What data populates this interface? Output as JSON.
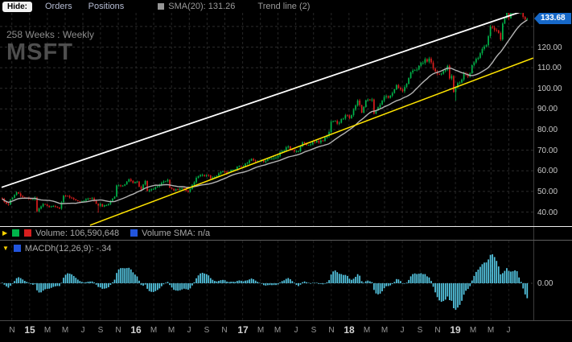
{
  "topbar": {
    "hide_label": "Hide:",
    "orders_label": "Orders",
    "positions_label": "Positions",
    "sma_legend_label": "SMA(20): 131.26",
    "sma_swatch_color": "#969696",
    "trendline_legend_label": "Trend line (2)"
  },
  "chart_header": {
    "range_label": "258 Weeks : Weekly",
    "symbol": "MSFT"
  },
  "price_axis": {
    "last_price": "133.68",
    "last_price_value": 133.68,
    "badge_color": "#1668c8",
    "labels": [
      {
        "text": "120.00",
        "value": 120
      },
      {
        "text": "110.00",
        "value": 110
      },
      {
        "text": "100.00",
        "value": 100
      },
      {
        "text": "90.00",
        "value": 90
      },
      {
        "text": "80.00",
        "value": 80
      },
      {
        "text": "70.00",
        "value": 70
      },
      {
        "text": "60.00",
        "value": 60
      },
      {
        "text": "50.00",
        "value": 50
      },
      {
        "text": "40.00",
        "value": 40
      }
    ]
  },
  "volume_panel": {
    "collapse_icon": "▶",
    "up_color": "#00b44a",
    "down_color": "#d81e1e",
    "volume_label": "Volume: 106,590,648",
    "sma_swatch_color": "#2255dd",
    "sma_label": "Volume SMA: n/a"
  },
  "macd_panel": {
    "collapse_icon": "▼",
    "swatch_color": "#2255dd",
    "label": "MACDh(12,26,9): -.34",
    "zero_label": "0.00"
  },
  "time_axis": {
    "labels": [
      {
        "text": "N",
        "week": 5.0
      },
      {
        "text": "15",
        "week": 13.7
      },
      {
        "text": "M",
        "week": 22.4
      },
      {
        "text": "M",
        "week": 31.1
      },
      {
        "text": "J",
        "week": 39.8
      },
      {
        "text": "S",
        "week": 48.4
      },
      {
        "text": "N",
        "week": 57.1
      },
      {
        "text": "16",
        "week": 65.8
      },
      {
        "text": "M",
        "week": 74.5
      },
      {
        "text": "M",
        "week": 83.2
      },
      {
        "text": "J",
        "week": 91.9
      },
      {
        "text": "S",
        "week": 100.6
      },
      {
        "text": "N",
        "week": 109.3
      },
      {
        "text": "17",
        "week": 118.0
      },
      {
        "text": "M",
        "week": 126.7
      },
      {
        "text": "M",
        "week": 135.3
      },
      {
        "text": "J",
        "week": 144.0
      },
      {
        "text": "S",
        "week": 152.7
      },
      {
        "text": "N",
        "week": 161.4
      },
      {
        "text": "18",
        "week": 170.1
      },
      {
        "text": "M",
        "week": 178.8
      },
      {
        "text": "M",
        "week": 187.5
      },
      {
        "text": "J",
        "week": 196.2
      },
      {
        "text": "S",
        "week": 204.9
      },
      {
        "text": "N",
        "week": 213.5
      },
      {
        "text": "19",
        "week": 222.2
      },
      {
        "text": "M",
        "week": 230.9
      },
      {
        "text": "M",
        "week": 239.6
      },
      {
        "text": "J",
        "week": 248.3
      }
    ]
  },
  "chart_data": {
    "type": "candlestick",
    "symbol": "MSFT",
    "timeframe": "Weekly",
    "weeks_shown": 258,
    "title": "258 Weeks : Weekly",
    "last_close": 133.68,
    "visible_price_range": [
      32.8,
      136.6
    ],
    "up_color": "#00b44a",
    "down_color": "#d81e1e",
    "grid": {
      "h_lines": [
        40,
        50,
        60,
        70,
        80,
        90,
        100,
        110,
        120,
        130
      ]
    },
    "sma": {
      "period": 20,
      "last": 131.26,
      "color": "#b4b4b4"
    },
    "trendlines": [
      {
        "name": "upper-channel",
        "color": "#ffffff",
        "from_week": 0,
        "from_price": 52.0,
        "to_week": 260.0,
        "to_price": 139.0
      },
      {
        "name": "lower-channel",
        "color": "#ffe400",
        "from_week": 43.3,
        "from_price": 33.6,
        "to_week": 260.3,
        "to_price": 114.7
      }
    ],
    "anchors": [
      [
        0,
        46.4
      ],
      [
        2,
        44.0
      ],
      [
        3,
        43.6
      ],
      [
        4,
        46.1
      ],
      [
        5,
        46.9
      ],
      [
        7,
        49.6
      ],
      [
        9,
        47.8
      ],
      [
        11,
        46.9
      ],
      [
        13,
        46.4
      ],
      [
        15,
        46.2
      ],
      [
        16,
        47.0
      ],
      [
        17,
        40.4
      ],
      [
        20,
        43.9
      ],
      [
        23,
        42.4
      ],
      [
        25,
        42.9
      ],
      [
        28,
        41.7
      ],
      [
        30,
        47.9
      ],
      [
        32,
        47.8
      ],
      [
        36,
        45.7
      ],
      [
        39,
        45.3
      ],
      [
        42,
        46.6
      ],
      [
        44,
        46.7
      ],
      [
        47,
        43.1
      ],
      [
        48,
        43.9
      ],
      [
        49,
        42.6
      ],
      [
        52,
        43.9
      ],
      [
        55,
        47.5
      ],
      [
        56,
        52.9
      ],
      [
        59,
        52.8
      ],
      [
        62,
        55.9
      ],
      [
        64,
        54.1
      ],
      [
        66,
        54.8
      ],
      [
        67,
        52.3
      ],
      [
        68,
        51.0
      ],
      [
        70,
        55.1
      ],
      [
        71,
        50.2
      ],
      [
        72,
        50.5
      ],
      [
        75,
        52.0
      ],
      [
        78,
        54.2
      ],
      [
        81,
        55.6
      ],
      [
        82,
        51.8
      ],
      [
        84,
        50.4
      ],
      [
        85,
        51.1
      ],
      [
        89,
        51.5
      ],
      [
        91,
        49.8
      ],
      [
        92,
        51.2
      ],
      [
        95,
        56.6
      ],
      [
        97,
        57.9
      ],
      [
        101,
        57.7
      ],
      [
        102,
        56.2
      ],
      [
        105,
        57.6
      ],
      [
        108,
        59.7
      ],
      [
        110,
        58.7
      ],
      [
        113,
        60.5
      ],
      [
        116,
        62.3
      ],
      [
        118,
        62.1
      ],
      [
        122,
        65.8
      ],
      [
        125,
        64.6
      ],
      [
        129,
        64.9
      ],
      [
        131,
        65.9
      ],
      [
        134,
        66.4
      ],
      [
        136,
        69.0
      ],
      [
        140,
        71.8
      ],
      [
        142,
        70.0
      ],
      [
        145,
        69.5
      ],
      [
        147,
        73.8
      ],
      [
        150,
        72.5
      ],
      [
        153,
        73.9
      ],
      [
        157,
        74.5
      ],
      [
        160,
        78.8
      ],
      [
        161,
        83.8
      ],
      [
        165,
        83.3
      ],
      [
        168,
        86.9
      ],
      [
        170,
        85.5
      ],
      [
        172,
        89.6
      ],
      [
        174,
        94.1
      ],
      [
        176,
        88.2
      ],
      [
        178,
        94.1
      ],
      [
        181,
        94.6
      ],
      [
        182,
        87.7
      ],
      [
        184,
        90.8
      ],
      [
        187,
        95.8
      ],
      [
        190,
        96.4
      ],
      [
        193,
        101.6
      ],
      [
        196,
        98.6
      ],
      [
        200,
        107.7
      ],
      [
        202,
        108.9
      ],
      [
        205,
        112.3
      ],
      [
        209,
        114.4
      ],
      [
        211,
        109.6
      ],
      [
        213,
        107.0
      ],
      [
        216,
        108.3
      ],
      [
        218,
        110.9
      ],
      [
        219,
        104.8
      ],
      [
        220,
        106.0
      ],
      [
        221,
        98.2
      ],
      [
        222,
        100.4
      ],
      [
        224,
        102.8
      ],
      [
        226,
        107.2
      ],
      [
        228,
        105.7
      ],
      [
        231,
        112.5
      ],
      [
        234,
        117.0
      ],
      [
        237,
        120.9
      ],
      [
        239,
        129.9
      ],
      [
        242,
        128.1
      ],
      [
        244,
        123.7
      ],
      [
        245,
        131.4
      ],
      [
        247,
        137.0
      ],
      [
        248,
        134.0
      ],
      [
        250,
        138.9
      ],
      [
        252,
        141.3
      ],
      [
        253,
        136.9
      ],
      [
        254,
        137.7
      ],
      [
        256,
        133.4
      ],
      [
        257,
        133.68
      ]
    ],
    "low_overrides": {
      "17": 39.8,
      "47": 39.7,
      "222": 93.96
    },
    "high_overrides": {
      "252": 141.8
    },
    "macdh": {
      "fast": 12,
      "slow": 26,
      "signal": 9,
      "last": -0.34,
      "bar_color": "#55c8e4"
    },
    "volume": {
      "last": 106590648,
      "sma": "n/a"
    }
  }
}
